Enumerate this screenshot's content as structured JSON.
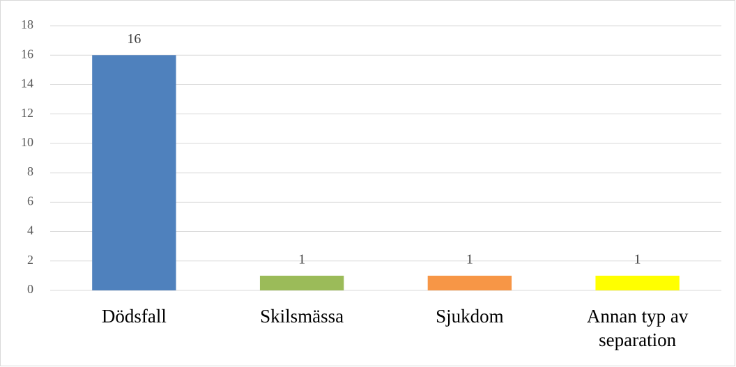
{
  "chart_data": {
    "type": "bar",
    "categories": [
      "Dödsfall",
      "Skilsmässa",
      "Sjukdom",
      "Annan typ av separation"
    ],
    "values": [
      16,
      1,
      1,
      1
    ],
    "colors": [
      "#4f81bd",
      "#9bbb59",
      "#f79646",
      "#ffff00"
    ],
    "ylim": [
      0,
      18
    ],
    "yticks": [
      0,
      2,
      4,
      6,
      8,
      10,
      12,
      14,
      16,
      18
    ],
    "grid": true
  }
}
